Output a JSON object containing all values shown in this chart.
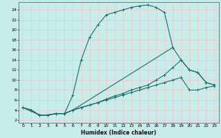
{
  "xlabel": "Humidex (Indice chaleur)",
  "bg_color": "#c8ece9",
  "grid_color": "#b0d8d4",
  "line_color": "#1a6b6b",
  "xlim": [
    -0.5,
    23.5
  ],
  "ylim": [
    1.5,
    25.5
  ],
  "xtick_labels": [
    "0",
    "1",
    "2",
    "3",
    "4",
    "5",
    "6",
    "7",
    "8",
    "9",
    "10",
    "11",
    "12",
    "13",
    "14",
    "15",
    "16",
    "17",
    "18",
    "19",
    "20",
    "21",
    "22",
    "23"
  ],
  "yticks": [
    2,
    4,
    6,
    8,
    10,
    12,
    14,
    16,
    18,
    20,
    22,
    24
  ],
  "curve_main_x": [
    0,
    1,
    2,
    3,
    4,
    5,
    6,
    7,
    8,
    9,
    10,
    11,
    12,
    13,
    14,
    15,
    16,
    17,
    18
  ],
  "curve_main_y": [
    4.5,
    4.0,
    3.0,
    3.0,
    3.3,
    3.3,
    7.0,
    14.0,
    18.5,
    21.0,
    23.0,
    23.5,
    24.0,
    24.5,
    24.8,
    25.0,
    24.5,
    23.5,
    16.5
  ],
  "curve_close_x": [
    0,
    2,
    3,
    4,
    5,
    6,
    18,
    19,
    20,
    21,
    22,
    23
  ],
  "curve_close_y": [
    4.5,
    3.0,
    3.0,
    3.3,
    3.3,
    4.0,
    16.5,
    14.0,
    12.0,
    11.5,
    9.5,
    9.0
  ],
  "curve_mid_x": [
    0,
    1,
    2,
    3,
    4,
    5,
    6,
    7,
    8,
    9,
    10,
    11,
    12,
    13,
    14,
    15,
    16,
    17,
    18,
    19,
    20,
    21,
    22,
    23
  ],
  "curve_mid_y": [
    4.5,
    4.0,
    3.0,
    3.0,
    3.3,
    3.3,
    4.0,
    4.5,
    5.0,
    5.5,
    6.2,
    6.8,
    7.3,
    8.0,
    8.5,
    9.0,
    10.0,
    11.0,
    12.5,
    14.0,
    12.0,
    11.5,
    9.5,
    9.0
  ],
  "curve_low_x": [
    0,
    1,
    2,
    3,
    4,
    5,
    6,
    7,
    8,
    9,
    10,
    11,
    12,
    13,
    14,
    15,
    16,
    17,
    18,
    19,
    20,
    21,
    22,
    23
  ],
  "curve_low_y": [
    4.5,
    4.0,
    3.0,
    3.0,
    3.3,
    3.3,
    4.0,
    4.5,
    5.0,
    5.5,
    6.0,
    6.5,
    7.0,
    7.5,
    8.0,
    8.5,
    9.0,
    9.5,
    10.0,
    10.5,
    8.0,
    8.0,
    8.5,
    8.8
  ]
}
